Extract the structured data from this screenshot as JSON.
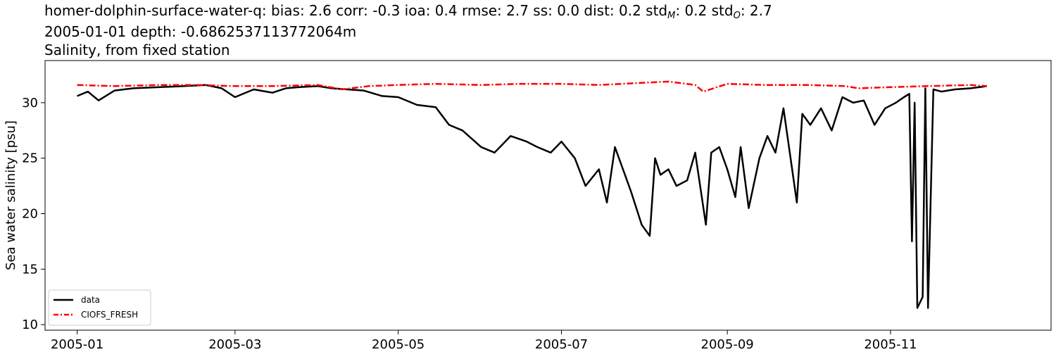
{
  "title": {
    "line1": {
      "prefix": "homer-dolphin-surface-water-q: bias: 2.6  corr: -0.3  ioa: 0.4  rmse: 2.7  ss: 0.0  dist: 0.2  std",
      "sub_m": "M",
      "mid": ": 0.2  std",
      "sub_o": "O",
      "suffix": ": 2.7"
    },
    "line2": "2005-01-01 depth: -0.6862537113772064m",
    "line3": "Salinity, from fixed station"
  },
  "chart_data": {
    "type": "line",
    "title": "homer-dolphin-surface-water-q: bias: 2.6  corr: -0.3  ioa: 0.4  rmse: 2.7  ss: 0.0  dist: 0.2  stdM: 0.2  stdO: 2.7 / 2005-01-01 depth: -0.6862537113772064m / Salinity, from fixed station",
    "xlabel": "",
    "ylabel": "Sea water salinity [psu]",
    "x_ticks": [
      "2005-01",
      "2005-03",
      "2005-05",
      "2005-07",
      "2005-09",
      "2005-11"
    ],
    "y_ticks": [
      "10",
      "15",
      "20",
      "25",
      "30"
    ],
    "xlim": [
      "2004-12-20",
      "2005-12-31"
    ],
    "ylim": [
      9.5,
      33.8
    ],
    "grid": false,
    "legend_position": "lower-left",
    "series": [
      {
        "name": "data",
        "color": "#000000",
        "style": "solid",
        "x": [
          "2005-01-01",
          "2005-01-05",
          "2005-01-09",
          "2005-01-15",
          "2005-01-22",
          "2005-02-01",
          "2005-02-10",
          "2005-02-18",
          "2005-02-24",
          "2005-03-01",
          "2005-03-08",
          "2005-03-15",
          "2005-03-20",
          "2005-03-25",
          "2005-04-01",
          "2005-04-06",
          "2005-04-12",
          "2005-04-18",
          "2005-04-25",
          "2005-05-01",
          "2005-05-08",
          "2005-05-15",
          "2005-05-20",
          "2005-05-25",
          "2005-06-01",
          "2005-06-06",
          "2005-06-12",
          "2005-06-18",
          "2005-06-22",
          "2005-06-27",
          "2005-07-01",
          "2005-07-06",
          "2005-07-10",
          "2005-07-15",
          "2005-07-18",
          "2005-07-21",
          "2005-07-24",
          "2005-07-27",
          "2005-07-31",
          "2005-08-03",
          "2005-08-05",
          "2005-08-07",
          "2005-08-10",
          "2005-08-13",
          "2005-08-17",
          "2005-08-20",
          "2005-08-24",
          "2005-08-26",
          "2005-08-29",
          "2005-09-01",
          "2005-09-04",
          "2005-09-06",
          "2005-09-09",
          "2005-09-13",
          "2005-09-16",
          "2005-09-19",
          "2005-09-22",
          "2005-09-27",
          "2005-09-29",
          "2005-10-02",
          "2005-10-06",
          "2005-10-10",
          "2005-10-14",
          "2005-10-18",
          "2005-10-22",
          "2005-10-26",
          "2005-10-30",
          "2005-11-03",
          "2005-11-06",
          "2005-11-08",
          "2005-11-09",
          "2005-11-10",
          "2005-11-11",
          "2005-11-13",
          "2005-11-14",
          "2005-11-15",
          "2005-11-17",
          "2005-11-20",
          "2005-11-25",
          "2005-12-01",
          "2005-12-07"
        ],
        "values": [
          30.6,
          31.0,
          30.2,
          31.1,
          31.3,
          31.4,
          31.5,
          31.6,
          31.3,
          30.5,
          31.2,
          30.9,
          31.3,
          31.4,
          31.5,
          31.3,
          31.2,
          31.1,
          30.6,
          30.5,
          29.8,
          29.6,
          28.0,
          27.5,
          26.0,
          25.5,
          27.0,
          26.5,
          26.0,
          25.5,
          26.5,
          25.0,
          22.5,
          24.0,
          21.0,
          26.0,
          24.0,
          22.0,
          19.0,
          18.0,
          25.0,
          23.5,
          24.0,
          22.5,
          23.0,
          25.5,
          19.0,
          25.5,
          26.0,
          24.0,
          21.5,
          26.0,
          20.5,
          25.0,
          27.0,
          25.5,
          29.5,
          21.0,
          29.0,
          28.0,
          29.5,
          27.5,
          30.5,
          30.0,
          30.2,
          28.0,
          29.5,
          30.0,
          30.5,
          30.8,
          17.5,
          30.0,
          11.5,
          12.5,
          31.3,
          11.5,
          31.2,
          31.0,
          31.2,
          31.3,
          31.5
        ]
      },
      {
        "name": "CIOFS_FRESH",
        "color": "#ff0000",
        "style": "dashdot",
        "x": [
          "2005-01-01",
          "2005-01-15",
          "2005-02-01",
          "2005-02-15",
          "2005-03-01",
          "2005-03-15",
          "2005-04-01",
          "2005-04-10",
          "2005-04-20",
          "2005-05-01",
          "2005-05-15",
          "2005-06-01",
          "2005-06-15",
          "2005-07-01",
          "2005-07-15",
          "2005-08-01",
          "2005-08-10",
          "2005-08-20",
          "2005-08-23",
          "2005-09-01",
          "2005-09-15",
          "2005-10-01",
          "2005-10-15",
          "2005-10-20",
          "2005-11-01",
          "2005-11-15",
          "2005-12-01",
          "2005-12-07"
        ],
        "values": [
          31.6,
          31.5,
          31.6,
          31.6,
          31.5,
          31.5,
          31.6,
          31.2,
          31.5,
          31.6,
          31.7,
          31.6,
          31.7,
          31.7,
          31.6,
          31.8,
          31.9,
          31.6,
          31.0,
          31.7,
          31.6,
          31.6,
          31.5,
          31.3,
          31.4,
          31.5,
          31.6,
          31.5
        ]
      }
    ]
  }
}
